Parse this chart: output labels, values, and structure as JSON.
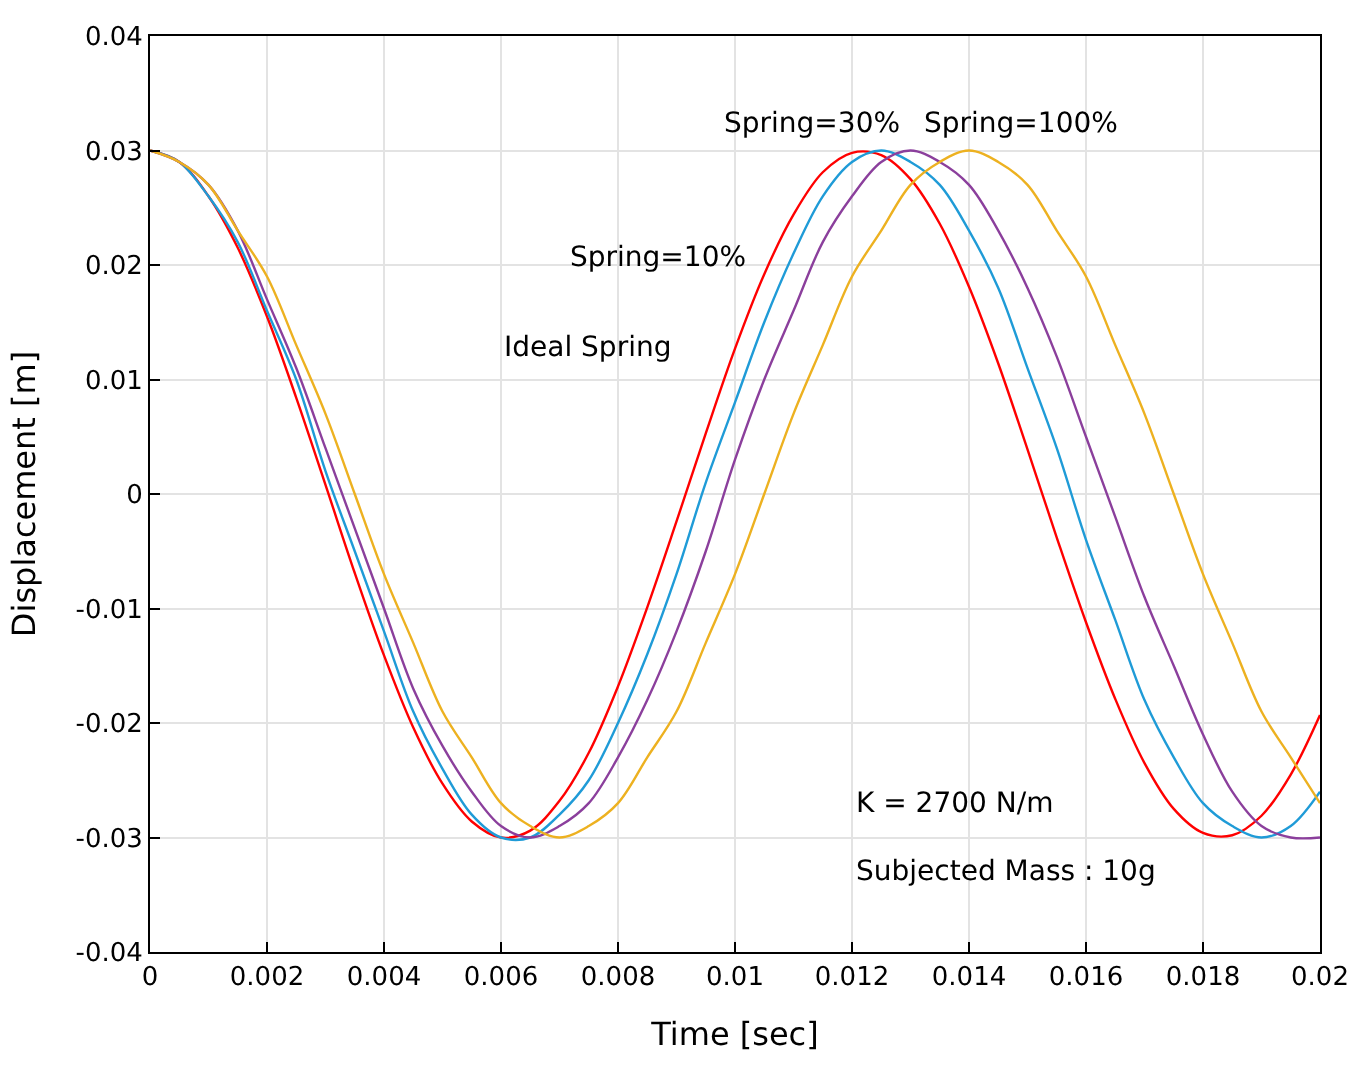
{
  "chart_data": {
    "type": "line",
    "xlabel": "Time [sec]",
    "ylabel": "Displacement [m]",
    "x": [
      0,
      0.0005,
      0.001,
      0.0015,
      0.002,
      0.0025,
      0.003,
      0.0035,
      0.004,
      0.0045,
      0.005,
      0.0055,
      0.006,
      0.0065,
      0.007,
      0.0075,
      0.008,
      0.0085,
      0.009,
      0.0095,
      0.01,
      0.0105,
      0.011,
      0.0115,
      0.012,
      0.0125,
      0.013,
      0.0135,
      0.014,
      0.0145,
      0.015,
      0.0155,
      0.016,
      0.0165,
      0.017,
      0.0175,
      0.018,
      0.0185,
      0.019,
      0.0195,
      0.02
    ],
    "series": [
      {
        "color": "#ff0000",
        "values": [
          0.03,
          0.029,
          0.026,
          0.0215,
          0.0155,
          0.0084,
          0.0008,
          -0.0069,
          -0.0141,
          -0.0204,
          -0.0253,
          -0.0286,
          -0.03,
          -0.0294,
          -0.0268,
          -0.0226,
          -0.0168,
          -0.0099,
          -0.0024,
          0.0053,
          0.0127,
          0.0192,
          0.0244,
          0.0281,
          0.0298,
          0.0296,
          0.0275,
          0.0236,
          0.0181,
          0.0114,
          0.0039,
          -0.0038,
          -0.0112,
          -0.0179,
          -0.0235,
          -0.0275,
          -0.0296,
          -0.0298,
          -0.0281,
          -0.0245,
          -0.0193
        ]
      },
      {
        "color": "#1f9bd7",
        "values": [
          0.03,
          0.029,
          0.026,
          0.022,
          0.016,
          0.01,
          0.002,
          -0.005,
          -0.012,
          -0.019,
          -0.024,
          -0.028,
          -0.03,
          -0.03,
          -0.028,
          -0.025,
          -0.02,
          -0.014,
          -0.007,
          0.001,
          0.008,
          0.015,
          0.021,
          0.026,
          0.029,
          0.03,
          0.029,
          0.027,
          0.023,
          0.018,
          0.011,
          0.004,
          -0.004,
          -0.011,
          -0.018,
          -0.023,
          -0.027,
          -0.029,
          -0.03,
          -0.029,
          -0.026
        ]
      },
      {
        "color": "#8b3f9c",
        "values": [
          0.03,
          0.029,
          0.027,
          0.023,
          0.017,
          0.011,
          0.004,
          -0.003,
          -0.01,
          -0.017,
          -0.022,
          -0.026,
          -0.029,
          -0.03,
          -0.029,
          -0.027,
          -0.023,
          -0.018,
          -0.012,
          -0.005,
          0.003,
          0.01,
          0.016,
          0.022,
          0.026,
          0.029,
          0.03,
          0.029,
          0.027,
          0.023,
          0.018,
          0.012,
          0.005,
          -0.002,
          -0.009,
          -0.015,
          -0.021,
          -0.026,
          -0.029,
          -0.03,
          -0.03
        ]
      },
      {
        "color": "#edb120",
        "values": [
          0.03,
          0.029,
          0.027,
          0.023,
          0.019,
          0.013,
          0.007,
          0.0,
          -0.007,
          -0.013,
          -0.019,
          -0.023,
          -0.027,
          -0.029,
          -0.03,
          -0.029,
          -0.027,
          -0.023,
          -0.019,
          -0.013,
          -0.007,
          0.0,
          0.007,
          0.013,
          0.019,
          0.023,
          0.027,
          0.029,
          0.03,
          0.029,
          0.027,
          0.023,
          0.019,
          0.013,
          0.007,
          0.0,
          -0.007,
          -0.013,
          -0.019,
          -0.023,
          -0.027
        ]
      }
    ],
    "xlim": [
      0,
      0.02
    ],
    "xticks": [
      0,
      0.002,
      0.004,
      0.006,
      0.008,
      0.01,
      0.012,
      0.014,
      0.016,
      0.018,
      0.02
    ],
    "ylim": [
      -0.04,
      0.04
    ],
    "yticks": [
      -0.04,
      -0.03,
      -0.02,
      -0.01,
      0,
      0.01,
      0.02,
      0.03,
      0.04
    ],
    "grid": true,
    "marker": "none",
    "line_style": "solid",
    "annotations": [
      "Spring=30%",
      "Spring=100%",
      "Spring=10%",
      "Ideal Spring",
      "K = 2700 N/m",
      "Subjected Mass : 10g"
    ]
  }
}
